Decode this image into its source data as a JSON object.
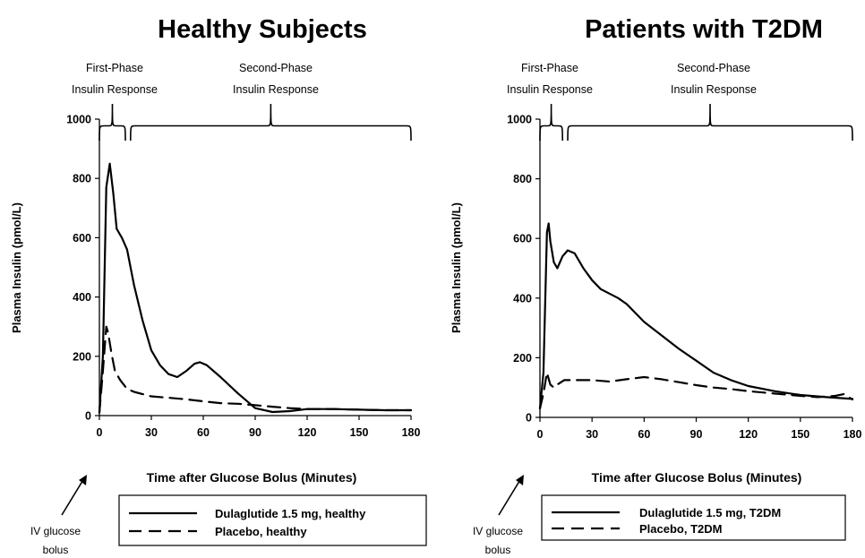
{
  "chart_data": [
    {
      "type": "line",
      "title": "Healthy Subjects",
      "xlabel": "Time after Glucose Bolus (Minutes)",
      "ylabel": "Plasma Insulin (pmol/L)",
      "xlim": [
        0,
        180
      ],
      "ylim": [
        0,
        1000
      ],
      "xticks": [
        "0",
        "30",
        "60",
        "90",
        "120",
        "150",
        "180"
      ],
      "yticks": [
        "0",
        "200",
        "400",
        "600",
        "800",
        "1000"
      ],
      "grid": false,
      "legend_position": "below",
      "first_phase_label": [
        "First-Phase",
        "Insulin Response"
      ],
      "second_phase_label": [
        "Second-Phase",
        "Insulin Response"
      ],
      "first_phase_range": [
        0,
        15
      ],
      "second_phase_range": [
        18,
        180
      ],
      "annotation": [
        "IV glucose",
        "bolus"
      ],
      "series": [
        {
          "name": "Dulaglutide 1.5 mg, healthy",
          "style": "solid",
          "x": [
            0,
            2,
            4,
            6,
            8,
            10,
            13,
            16,
            20,
            25,
            30,
            35,
            40,
            45,
            50,
            55,
            58,
            62,
            70,
            80,
            90,
            100,
            110,
            120,
            135,
            150,
            165,
            180
          ],
          "y": [
            10,
            200,
            770,
            850,
            750,
            630,
            600,
            560,
            440,
            320,
            220,
            170,
            140,
            130,
            150,
            175,
            180,
            170,
            130,
            75,
            25,
            12,
            15,
            22,
            22,
            20,
            18,
            18
          ]
        },
        {
          "name": "Placebo, healthy",
          "style": "dashed",
          "x": [
            0,
            2,
            4,
            5,
            7,
            9,
            12,
            16,
            20,
            30,
            40,
            50,
            60,
            70,
            80,
            90,
            100,
            110,
            120,
            135,
            150,
            165,
            180
          ],
          "y": [
            10,
            150,
            300,
            280,
            210,
            150,
            120,
            90,
            80,
            65,
            60,
            55,
            48,
            42,
            40,
            35,
            30,
            25,
            22,
            22,
            20,
            18,
            18
          ]
        }
      ]
    },
    {
      "type": "line",
      "title": "Patients with T2DM",
      "xlabel": "Time after Glucose Bolus (Minutes)",
      "ylabel": "Plasma Insulin (pmol/L)",
      "xlim": [
        0,
        180
      ],
      "ylim": [
        0,
        1000
      ],
      "xticks": [
        "0",
        "30",
        "60",
        "90",
        "120",
        "150",
        "180"
      ],
      "yticks": [
        "0",
        "200",
        "400",
        "600",
        "800",
        "1000"
      ],
      "grid": false,
      "legend_position": "below",
      "first_phase_label": [
        "First-Phase",
        "Insulin Response"
      ],
      "second_phase_label": [
        "Second-Phase",
        "Insulin Response"
      ],
      "first_phase_range": [
        0,
        13
      ],
      "second_phase_range": [
        16,
        180
      ],
      "annotation": [
        "IV glucose",
        "bolus"
      ],
      "series": [
        {
          "name": "Dulaglutide 1.5 mg, T2DM",
          "style": "solid",
          "x": [
            0,
            2,
            4,
            5,
            6,
            8,
            10,
            13,
            16,
            20,
            25,
            30,
            35,
            40,
            45,
            50,
            60,
            70,
            80,
            90,
            100,
            110,
            120,
            135,
            150,
            165,
            180
          ],
          "y": [
            30,
            150,
            620,
            650,
            590,
            520,
            500,
            540,
            560,
            550,
            500,
            460,
            430,
            415,
            400,
            380,
            320,
            275,
            230,
            190,
            150,
            125,
            105,
            88,
            75,
            68,
            62
          ]
        },
        {
          "name": "Placebo, T2DM",
          "style": "dashed",
          "x": [
            0,
            2,
            4,
            6,
            8,
            10,
            14,
            20,
            30,
            40,
            50,
            60,
            70,
            80,
            90,
            100,
            110,
            120,
            135,
            150,
            160,
            170,
            175,
            180
          ],
          "y": [
            30,
            80,
            150,
            110,
            100,
            110,
            125,
            125,
            125,
            120,
            128,
            135,
            128,
            118,
            108,
            100,
            95,
            88,
            80,
            72,
            68,
            72,
            78,
            60
          ]
        }
      ]
    }
  ]
}
